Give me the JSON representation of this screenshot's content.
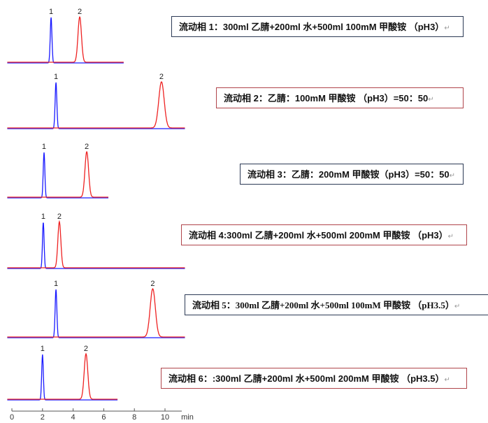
{
  "chart_data": {
    "type": "line",
    "xlabel": "min",
    "xticks": [
      "0",
      "2",
      "4",
      "6",
      "8",
      "10"
    ],
    "xlim": [
      0,
      11
    ],
    "colors": {
      "peak1": "#1a1aff",
      "peak2": "#ee2222"
    },
    "panels": [
      {
        "caption": "流动相 1：300ml 乙腈+200ml 水+500ml 100mM 甲酸铵 （pH3）",
        "peaks": [
          {
            "label": "1",
            "rt": 2.56
          },
          {
            "label": "2",
            "rt": 4.43
          }
        ],
        "run_end": 7.3
      },
      {
        "caption": "流动相 2：乙腈：100mM 甲酸铵 （pH3）=50：50",
        "peaks": [
          {
            "label": "1",
            "rt": 2.88
          },
          {
            "label": "2",
            "rt": 9.77
          }
        ],
        "run_end": 11.3
      },
      {
        "caption": "流动相 3：乙腈：200mM 甲酸铵（pH3）=50：50",
        "peaks": [
          {
            "label": "1",
            "rt": 2.1
          },
          {
            "label": "2",
            "rt": 4.89
          }
        ],
        "run_end": 6.3
      },
      {
        "caption": "流动相 4:300ml 乙腈+200ml 水+500ml 200mM 甲酸铵 （pH3）",
        "peaks": [
          {
            "label": "1",
            "rt": 2.05
          },
          {
            "label": "2",
            "rt": 3.1
          }
        ],
        "run_end": 11.3
      },
      {
        "caption": "流动相 5：300ml 乙腈+200ml 水+500ml 100mM 甲酸铵 （pH3.5）",
        "peaks": [
          {
            "label": "1",
            "rt": 2.88
          },
          {
            "label": "2",
            "rt": 9.2
          }
        ],
        "run_end": 11.3
      },
      {
        "caption": "流动相 6：:300ml 乙腈+200ml 水+500ml 200mM 甲酸铵 （pH3.5）",
        "peaks": [
          {
            "label": "1",
            "rt": 2.0
          },
          {
            "label": "2",
            "rt": 4.84
          }
        ],
        "run_end": 6.9
      }
    ],
    "return_mark": "↵"
  }
}
